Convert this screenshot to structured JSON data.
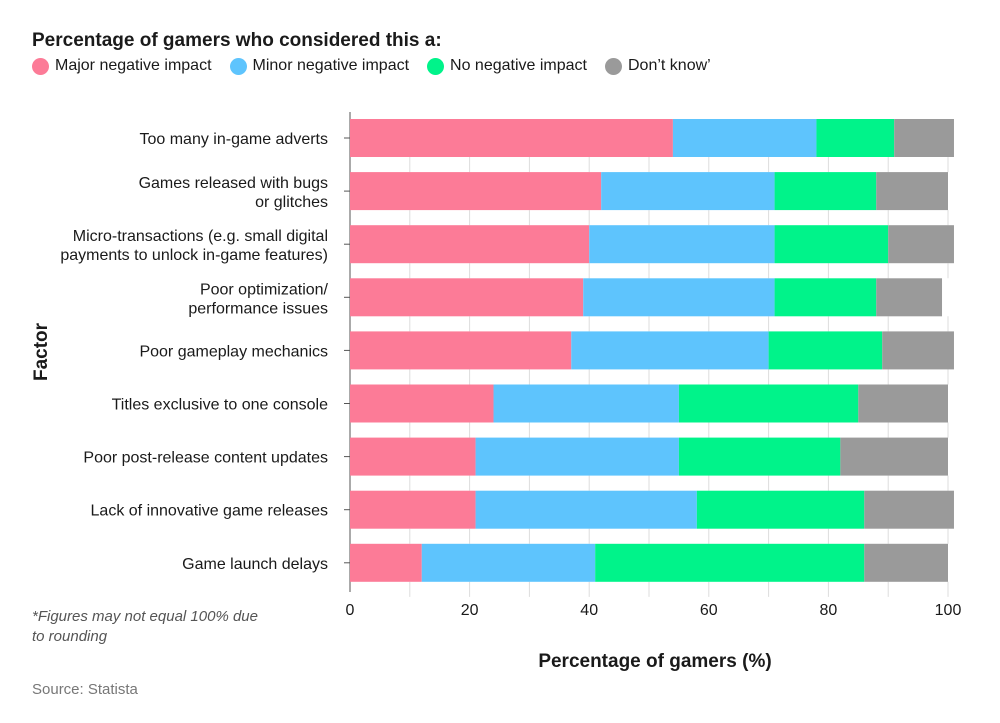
{
  "legend_title": "Percentage of gamers who considered this a:",
  "note": "*Figures may not equal 100% due to rounding",
  "source": "Source: Statista",
  "chart_data": {
    "type": "bar",
    "orientation": "horizontal",
    "stacked": true,
    "xlabel": "Percentage of gamers  (%)",
    "ylabel": "Factor",
    "xlim": [
      0,
      100
    ],
    "xticks": [
      0,
      20,
      40,
      60,
      80,
      100
    ],
    "grid": false,
    "legend_position": "top-left",
    "categories": [
      [
        "Too many in-game adverts"
      ],
      [
        "Games released with bugs",
        "or glitches"
      ],
      [
        "Micro-transactions (e.g. small digital",
        "payments to unlock in-game features)"
      ],
      [
        "Poor optimization/",
        "performance issues"
      ],
      [
        "Poor gameplay mechanics"
      ],
      [
        "Titles exclusive to one console"
      ],
      [
        "Poor post-release content updates"
      ],
      [
        "Lack of innovative game releases"
      ],
      [
        "Game launch delays"
      ]
    ],
    "series": [
      {
        "name": "Major negative impact",
        "color": "#fc7b97",
        "values": [
          54,
          42,
          40,
          39,
          37,
          24,
          21,
          21,
          12
        ]
      },
      {
        "name": "Minor negative impact",
        "color": "#5ec4fd",
        "values": [
          24,
          29,
          31,
          32,
          33,
          31,
          34,
          37,
          29
        ]
      },
      {
        "name": "No negative impact",
        "color": "#00f38a",
        "values": [
          13,
          17,
          19,
          17,
          19,
          30,
          27,
          28,
          45
        ]
      },
      {
        "name": "Don’t know’",
        "color": "#9a9a9a",
        "values": [
          10,
          12,
          11,
          11,
          12,
          15,
          18,
          15,
          14
        ]
      }
    ]
  }
}
